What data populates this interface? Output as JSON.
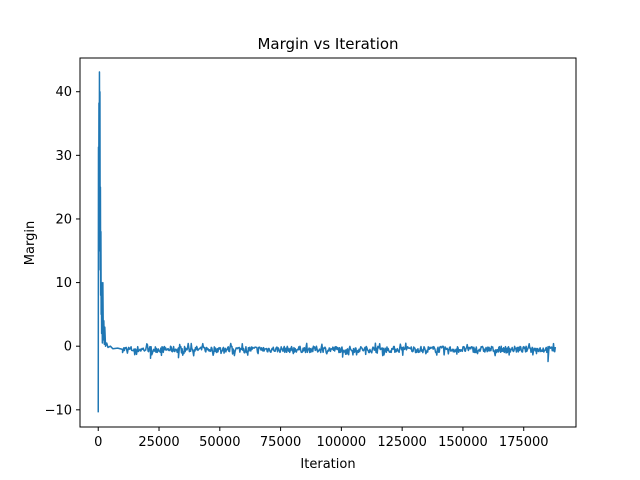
{
  "chart_data": {
    "type": "line",
    "title": "Margin vs Iteration",
    "xlabel": "Iteration",
    "ylabel": "Margin",
    "xlim": [
      -7500,
      196500
    ],
    "ylim": [
      -12.7,
      45.3
    ],
    "xticks": [
      0,
      25000,
      50000,
      75000,
      100000,
      125000,
      150000,
      175000
    ],
    "xtick_labels": [
      "0",
      "25000",
      "50000",
      "75000",
      "100000",
      "125000",
      "150000",
      "175000"
    ],
    "yticks": [
      -10,
      0,
      10,
      20,
      30,
      40
    ],
    "ytick_labels": [
      "−10",
      "0",
      "10",
      "20",
      "30",
      "40"
    ],
    "grid": false,
    "series": [
      {
        "color": "#1f77b4",
        "x": [
          0,
          100,
          200,
          300,
          400,
          500,
          600,
          700,
          800,
          900,
          1000,
          1100,
          1200,
          1300,
          1400,
          1500,
          1700,
          1900,
          2100,
          2300,
          2500,
          2700,
          3000,
          3500,
          4000,
          5000,
          6000,
          8000,
          10000,
          15000,
          20000,
          30000,
          40000,
          50000,
          60000,
          70000,
          80000,
          90000,
          100000,
          110000,
          120000,
          130000,
          140000,
          150000,
          160000,
          170000,
          180000,
          188000
        ],
        "y": [
          -10.4,
          31.3,
          22.0,
          38.2,
          15.0,
          43.1,
          28.0,
          40.0,
          12.0,
          25.0,
          8.0,
          18.0,
          5.0,
          10.0,
          2.0,
          7.0,
          0.5,
          10.0,
          1.0,
          4.0,
          0.3,
          3.0,
          0.0,
          0.5,
          -0.2,
          0.0,
          -0.4,
          -0.3,
          -0.5,
          -0.4,
          -0.5,
          -0.5,
          -0.5,
          -0.5,
          -0.5,
          -0.5,
          -0.5,
          -0.5,
          -0.5,
          -0.5,
          -0.5,
          -0.5,
          -0.5,
          -0.5,
          -0.5,
          -0.5,
          -0.5,
          -0.5
        ],
        "noise_band": [
          -1.5,
          0.5
        ]
      }
    ]
  }
}
